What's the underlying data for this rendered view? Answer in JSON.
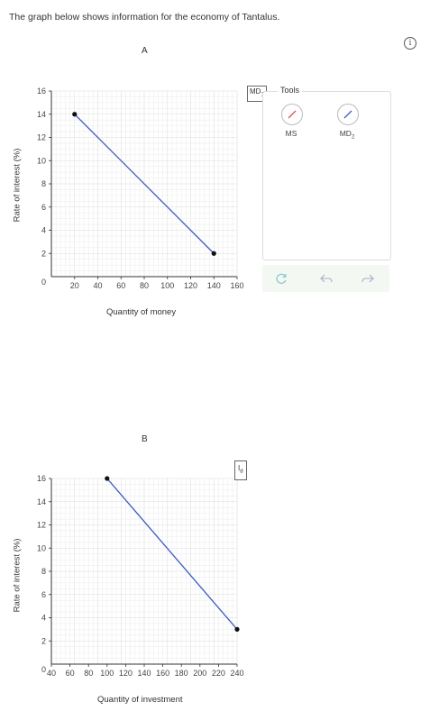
{
  "intro_text": "The graph below shows information for the economy of Tantalus.",
  "info_icon": "info-circle-icon",
  "tools": {
    "title": "Tools",
    "items": [
      {
        "label": "MS",
        "icon": "pencil-line-red-icon",
        "color": "#e05050"
      },
      {
        "label_main": "MD",
        "label_sub": "2",
        "icon": "pencil-line-blue-icon",
        "color": "#3b5bbf"
      }
    ],
    "actions": [
      {
        "name": "reset",
        "icon": "refresh-icon"
      },
      {
        "name": "undo",
        "icon": "undo-icon"
      },
      {
        "name": "redo",
        "icon": "redo-icon"
      }
    ]
  },
  "chart_data": [
    {
      "type": "line",
      "title": "A",
      "xlabel": "Quantity of money",
      "ylabel": "Rate of interest (%)",
      "xlim": [
        0,
        160
      ],
      "ylim": [
        0,
        16
      ],
      "xticks": [
        20,
        40,
        60,
        80,
        100,
        120,
        140,
        160
      ],
      "yticks": [
        2,
        4,
        6,
        8,
        10,
        12,
        14,
        16
      ],
      "grid": true,
      "curve_label_main": "MD",
      "curve_label_sub": "1",
      "line_color": "#3b5bbf",
      "series": [
        {
          "name": "MD1",
          "points": [
            [
              20,
              14
            ],
            [
              140,
              2
            ]
          ]
        }
      ]
    },
    {
      "type": "line",
      "title": "B",
      "xlabel": "Quantity of investment",
      "ylabel": "Rate of interest (%)",
      "xlim": [
        40,
        240
      ],
      "ylim": [
        0,
        16
      ],
      "xticks": [
        40,
        60,
        80,
        100,
        120,
        140,
        160,
        180,
        200,
        220,
        240
      ],
      "yticks": [
        2,
        4,
        6,
        8,
        10,
        12,
        14,
        16
      ],
      "grid": true,
      "curve_label_main": "I",
      "curve_label_sub": "d",
      "line_color": "#3b5bbf",
      "series": [
        {
          "name": "Id",
          "points": [
            [
              100,
              16
            ],
            [
              240,
              3
            ]
          ]
        }
      ]
    }
  ]
}
